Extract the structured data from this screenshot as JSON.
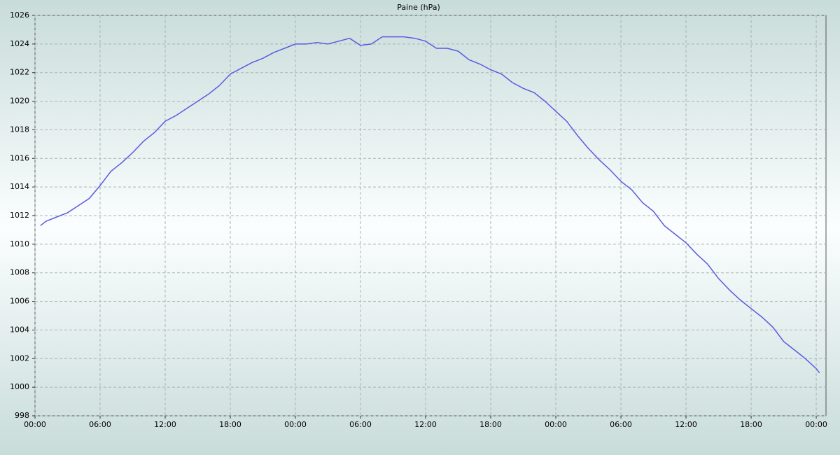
{
  "chart_data": {
    "type": "line",
    "title": "Paine (hPa)",
    "x": [
      0.5,
      1,
      2,
      3,
      4,
      5,
      6,
      7,
      8,
      9,
      10,
      11,
      12,
      13,
      14,
      15,
      16,
      17,
      18,
      19,
      20,
      21,
      22,
      23,
      24,
      25,
      26,
      27,
      28,
      29,
      30,
      31,
      32,
      33,
      34,
      35,
      36,
      37,
      38,
      39,
      40,
      41,
      42,
      43,
      44,
      45,
      46,
      47,
      48,
      49,
      50,
      51,
      52,
      53,
      54,
      55,
      56,
      57,
      58,
      59,
      60,
      61,
      62,
      63,
      64,
      65,
      66,
      67,
      68,
      69,
      70,
      71,
      72,
      72.3
    ],
    "series": [
      {
        "color": "#5b5be0",
        "values": [
          1011.3,
          1011.6,
          1011.9,
          1012.2,
          1012.7,
          1013.2,
          1014.1,
          1015.1,
          1015.7,
          1016.4,
          1017.2,
          1017.8,
          1018.6,
          1019.0,
          1019.5,
          1020.0,
          1020.5,
          1021.1,
          1021.9,
          1022.3,
          1022.7,
          1023.0,
          1023.4,
          1023.7,
          1024.0,
          1024.0,
          1024.1,
          1024.0,
          1024.2,
          1024.4,
          1023.9,
          1024.0,
          1024.5,
          1024.5,
          1024.5,
          1024.4,
          1024.2,
          1023.7,
          1023.7,
          1023.5,
          1022.9,
          1022.6,
          1022.2,
          1021.9,
          1021.3,
          1020.9,
          1020.6,
          1020.0,
          1019.3,
          1018.6,
          1017.6,
          1016.7,
          1015.9,
          1015.2,
          1014.4,
          1013.8,
          1012.9,
          1012.3,
          1011.3,
          1010.7,
          1010.1,
          1009.3,
          1008.6,
          1007.6,
          1006.8,
          1006.1,
          1005.5,
          1004.9,
          1004.2,
          1003.2,
          1002.6,
          1002.0,
          1001.3,
          1001.0
        ]
      }
    ],
    "xlim": [
      0,
      72.9
    ],
    "xticks": [
      {
        "value": 0,
        "label": "00:00"
      },
      {
        "value": 6,
        "label": "06:00"
      },
      {
        "value": 12,
        "label": "12:00"
      },
      {
        "value": 18,
        "label": "18:00"
      },
      {
        "value": 24,
        "label": "00:00"
      },
      {
        "value": 30,
        "label": "06:00"
      },
      {
        "value": 36,
        "label": "12:00"
      },
      {
        "value": 42,
        "label": "18:00"
      },
      {
        "value": 48,
        "label": "00:00"
      },
      {
        "value": 54,
        "label": "06:00"
      },
      {
        "value": 60,
        "label": "12:00"
      },
      {
        "value": 66,
        "label": "18:00"
      },
      {
        "value": 72,
        "label": "00:00"
      }
    ],
    "ylim": [
      998,
      1026
    ],
    "yticks": [
      998,
      1000,
      1002,
      1004,
      1006,
      1008,
      1010,
      1012,
      1014,
      1016,
      1018,
      1020,
      1022,
      1024,
      1026
    ],
    "grid": true
  }
}
